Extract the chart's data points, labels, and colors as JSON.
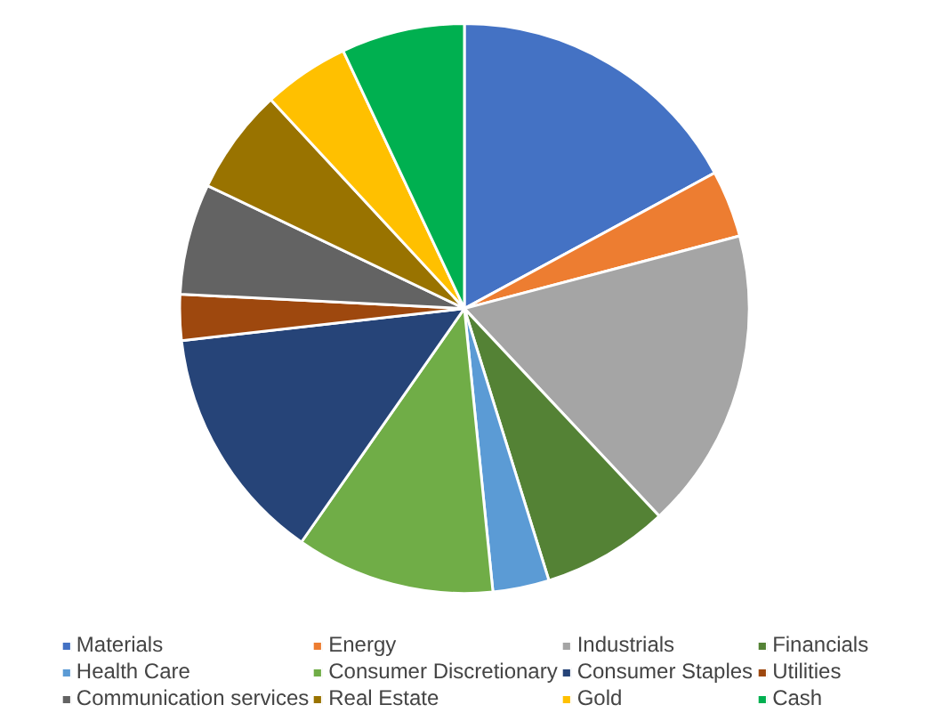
{
  "chart_data": {
    "type": "pie",
    "categories": [
      "Materials",
      "Energy",
      "Industrials",
      "Financials",
      "Health Care",
      "Consumer Discretionary",
      "Consumer Staples",
      "Utilities",
      "Communication services",
      "Real Estate",
      "Gold",
      "Cash"
    ],
    "values": [
      17.1,
      3.8,
      17.1,
      7.2,
      3.2,
      11.3,
      13.5,
      2.6,
      6.3,
      6.0,
      4.9,
      7.0
    ],
    "colors": [
      "#4472c4",
      "#ed7d31",
      "#a5a5a5",
      "#548235",
      "#5b9bd5",
      "#70ad47",
      "#264478",
      "#9e480e",
      "#636363",
      "#997300",
      "#ffc000",
      "#00b050"
    ],
    "legend": "bottom"
  }
}
